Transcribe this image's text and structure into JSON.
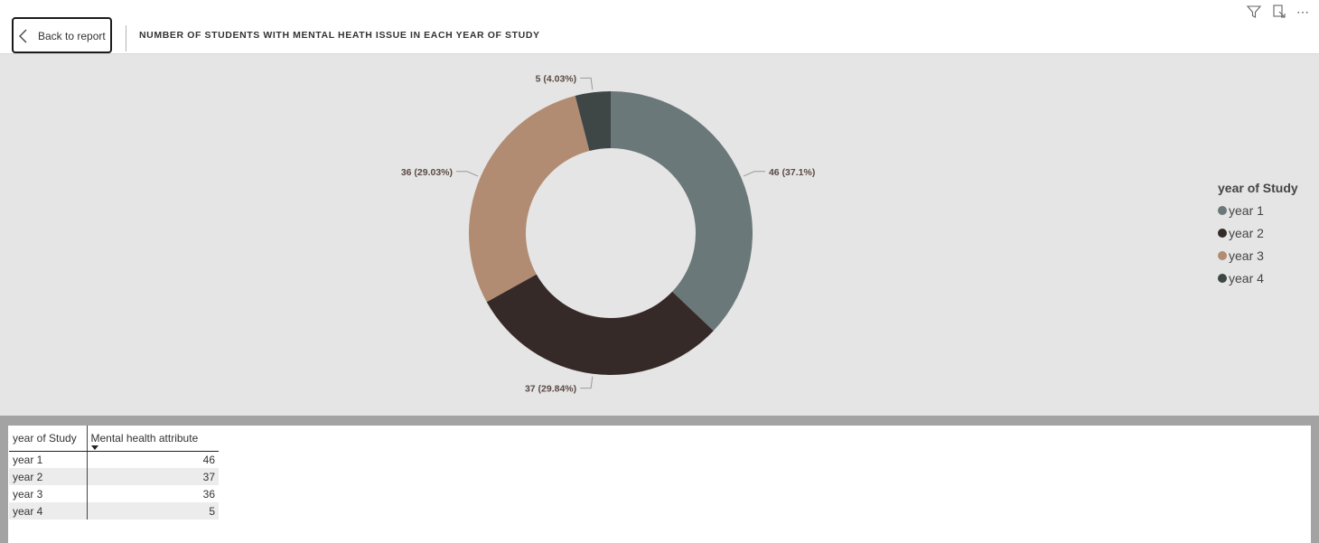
{
  "header": {
    "back_label": "Back to report",
    "title": "NUMBER OF STUDENTS WITH MENTAL HEATH ISSUE IN EACH YEAR OF STUDY",
    "icons": [
      "chevron-left-icon",
      "filter-icon",
      "focus-mode-icon",
      "more-options-icon"
    ],
    "more_label": "⋯"
  },
  "chart_data": {
    "type": "donut",
    "title": "NUMBER OF STUDENTS WITH MENTAL HEATH ISSUE IN EACH YEAR OF STUDY",
    "categories": [
      "year 1",
      "year 2",
      "year 3",
      "year 4"
    ],
    "values": [
      46,
      37,
      36,
      5
    ],
    "data_labels": [
      "46 (37.1%)",
      "37 (29.84%)",
      "36 (29.03%)",
      "5 (4.03%)"
    ],
    "colors": [
      "#6b7879",
      "#362a29",
      "#b18c72",
      "#3e4646"
    ],
    "legend_title": "year of Study",
    "legend_position": "right"
  },
  "legend": {
    "title": "year of Study",
    "items": [
      {
        "label": "year 1",
        "color": "#6b7879"
      },
      {
        "label": "year 2",
        "color": "#362a29"
      },
      {
        "label": "year 3",
        "color": "#b18c72"
      },
      {
        "label": "year 4",
        "color": "#3e4646"
      }
    ]
  },
  "table": {
    "headers": [
      "year of Study",
      "Mental health attribute"
    ],
    "rows": [
      {
        "year": "year 1",
        "value": "46"
      },
      {
        "year": "year 2",
        "value": "37"
      },
      {
        "year": "year 3",
        "value": "36"
      },
      {
        "year": "year 4",
        "value": "5"
      }
    ]
  }
}
